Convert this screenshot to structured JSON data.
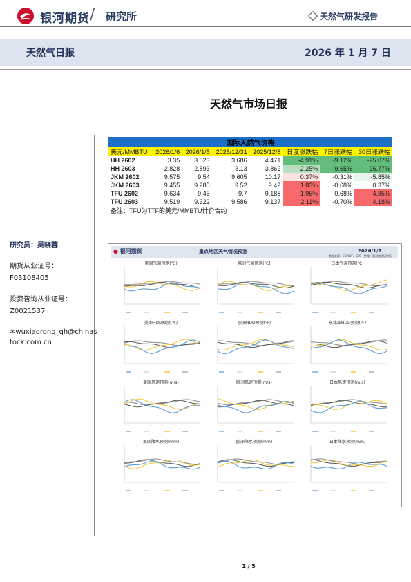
{
  "header": {
    "brand": "银河期货",
    "institute": "研究所",
    "report_type": "天然气研发报告",
    "report_name": "天然气日报",
    "date": "2026 年 1 月 7 日"
  },
  "title": "天然气市场日报",
  "sidebar": {
    "researcher": "研究员：吴晓蓉",
    "futures_cert_label": "期货从业证号：",
    "futures_cert": "F03108405",
    "advisor_cert_label": "投资咨询从业证号：",
    "advisor_cert": "Z0021537",
    "email_line1": "wuxiaorong_qh@chinas",
    "email_line2": "tock.com.cn"
  },
  "price_table": {
    "title": "国际天然气价格",
    "headers": [
      "美元/MMBTU",
      "2026/1/6",
      "2026/1/5",
      "2025/12/31",
      "2025/12/8",
      "日度涨跌幅",
      "7日涨跌幅",
      "30日涨跌幅"
    ],
    "rows": [
      {
        "name": "HH 2602",
        "v": [
          "3.35",
          "3.523",
          "3.686",
          "4.471"
        ],
        "d1": "-4.91%",
        "d7": "-9.12%",
        "d30": "-25.07%"
      },
      {
        "name": "HH 2603",
        "v": [
          "2.828",
          "2.893",
          "3.13",
          "3.862"
        ],
        "d1": "-2.25%",
        "d7": "-9.65%",
        "d30": "-26.77%"
      },
      {
        "name": "JKM 2602",
        "v": [
          "9.575",
          "9.54",
          "9.605",
          "10.17"
        ],
        "d1": "0.37%",
        "d7": "-0.31%",
        "d30": "-5.85%"
      },
      {
        "name": "JKM 2603",
        "v": [
          "9.455",
          "9.285",
          "9.52",
          "9.42"
        ],
        "d1": "1.83%",
        "d7": "-0.68%",
        "d30": "0.37%"
      },
      {
        "name": "TFU 2602",
        "v": [
          "9.634",
          "9.45",
          "9.7",
          "9.188"
        ],
        "d1": "1.95%",
        "d7": "-0.68%",
        "d30": "4.85%"
      },
      {
        "name": "TFU 2603",
        "v": [
          "9.519",
          "9.322",
          "9.586",
          "9.137"
        ],
        "d1": "2.11%",
        "d7": "-0.70%",
        "d30": "4.18%"
      }
    ],
    "cell_colors": {
      "d1": [
        "#63be7b",
        "#b7dfc0",
        "#fbe3e3",
        "#f8696b",
        "#f8696b",
        "#f8696b"
      ],
      "d7": [
        "#63be7b",
        "#63be7b",
        "#ffffff",
        "#ffffff",
        "#ffffff",
        "#ffffff"
      ],
      "d30": [
        "#63be7b",
        "#63be7b",
        "#e7f4ea",
        "#ffffff",
        "#f8696b",
        "#f8696b"
      ]
    },
    "note": "备注：TFU为TTF的美元/MMBTU计价合约"
  },
  "chart_panel": {
    "brand": "银河期货",
    "title": "重点地区天气情况预测",
    "date": "2026/1/7",
    "subtitle": "数据来源：ECMWF、GFS　整理：银河期货研究所",
    "charts": [
      "美国气温预测(℃)",
      "欧洲气温预测(℃)",
      "日本气温预测(℃)",
      "美国HDD预测(℉)",
      "欧洲HDD预测(℉)",
      "东北亚HDD预测(℉)",
      "美国风速预测(m/s)",
      "欧洲风速预测(m/s)",
      "日本风速预测(m/s)",
      "美国降水预测(mm)",
      "欧洲降水预测(mm)",
      "日本降水预测(mm)"
    ]
  },
  "footer": {
    "page": "1 / 5"
  },
  "colors": {
    "brand_navy": "#1f2f55",
    "brand_red": "#c8102e",
    "table_title_blue": "#1b6fc9",
    "header_yellow": "#fff200",
    "green": "#63be7b",
    "red": "#f8696b"
  }
}
